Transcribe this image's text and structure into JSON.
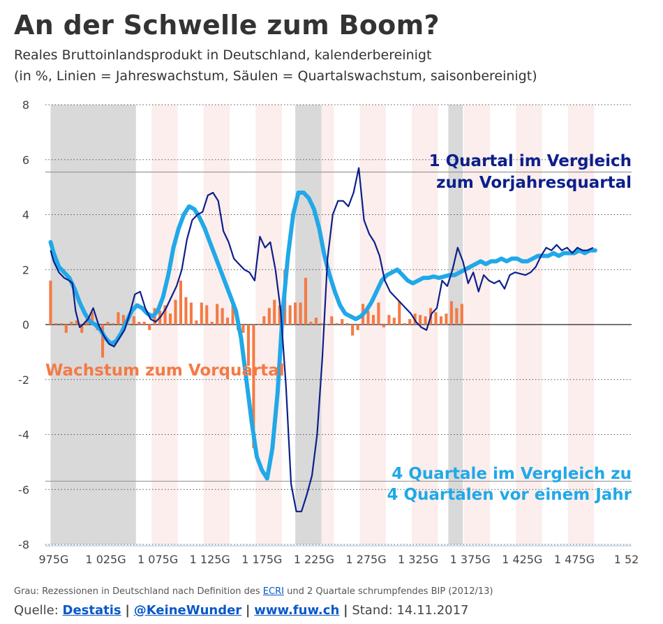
{
  "header": {
    "title": "An der Schwelle zum Boom?",
    "subtitle_line1": "Reales Bruttoinlandsprodukt in Deutschland, kalenderbereinigt",
    "subtitle_line2": "(in %, Linien = Jahreswachstum, Säulen = Quartalswachstum, saisonbereinigt)"
  },
  "footer": {
    "note_prefix": "Grau: Rezessionen in Deutschland nach Definition des",
    "note_link": "ECRI",
    "note_suffix": "und 2 Quartale schrumpfendes BIP (2012/13)",
    "source_label": "Quelle:",
    "source_links": [
      "Destatis",
      "@KeineWunder",
      "www.fuw.ch"
    ],
    "stand": "Stand: 14.11.2017"
  },
  "colors": {
    "bars": "#f47a45",
    "line_quarter_yoy": "#0d1f8a",
    "line_four_quarter": "#21a8e8",
    "recession": "#d9d9d9",
    "stripe": "#fbeeec",
    "text": "#333333"
  },
  "chart_data": {
    "type": "bar",
    "ylim": [
      -8,
      8
    ],
    "yticks": [
      -8,
      -6,
      -4,
      -2,
      0,
      2,
      4,
      6,
      8
    ],
    "xtick_labels": [
      "975G",
      "1 025G",
      "1 075G",
      "1 125G",
      "1 175G",
      "1 225G",
      "1 275G",
      "1 325G",
      "1 375G",
      "1 425G",
      "1 475G",
      "1 52"
    ],
    "xtick_positions": [
      975,
      1025,
      1075,
      1125,
      1175,
      1225,
      1275,
      1325,
      1375,
      1425,
      1475,
      1525
    ],
    "xlim": [
      967,
      1530
    ],
    "grid": "horizontal-dotted",
    "annotations": {
      "bars": "Wachstum zum Vorquartal",
      "quarter_line_1": "1 Quartal im Vergleich",
      "quarter_line_2": "zum Vorjahresquartal",
      "four_quarter_line_1": "4 Quartale im Vergleich zu",
      "four_quarter_line_2": "4 Quartalen vor einem Jahr"
    },
    "recessions": [
      [
        972,
        1054
      ],
      [
        1207,
        1232
      ],
      [
        1354,
        1368
      ]
    ],
    "stripes": [
      [
        1069,
        1094
      ],
      [
        1119,
        1144
      ],
      [
        1169,
        1194
      ],
      [
        1219,
        1244
      ],
      [
        1269,
        1294
      ],
      [
        1319,
        1344
      ],
      [
        1369,
        1394
      ],
      [
        1419,
        1444
      ],
      [
        1469,
        1494
      ]
    ],
    "reference_lines": [
      5.55,
      -5.7
    ],
    "bar_x_start": 972,
    "bar_x_step": 5,
    "bars": [
      1.6,
      0.05,
      0.05,
      -0.3,
      0.1,
      0.15,
      -0.3,
      0.2,
      0.45,
      -0.2,
      -1.2,
      0.1,
      0.05,
      0.45,
      0.35,
      0.0,
      0.3,
      0.1,
      0.1,
      -0.2,
      0.6,
      0.5,
      0.7,
      0.4,
      0.9,
      1.6,
      1.0,
      0.8,
      0.15,
      0.8,
      0.7,
      0.1,
      0.75,
      0.6,
      0.25,
      0.85,
      -0.2,
      -0.3,
      -1.5,
      -4.5,
      0.0,
      0.3,
      0.6,
      0.9,
      0.7,
      2.0,
      0.7,
      0.8,
      0.8,
      1.7,
      0.1,
      0.25,
      0.05,
      0.0,
      0.3,
      0.05,
      0.2,
      0.05,
      -0.4,
      -0.2,
      0.75,
      0.5,
      0.35,
      0.8,
      -0.1,
      0.35,
      0.25,
      0.85,
      0.05,
      0.2,
      0.4,
      0.35,
      0.3,
      0.6,
      0.45,
      0.3,
      0.4,
      0.85,
      0.6,
      0.75
    ],
    "series": [
      {
        "name": "1 Quartal im Vergleich zum Vorjahresquartal",
        "type": "line",
        "x": [
          972,
          975,
          980,
          985,
          990,
          993,
          996,
          1000,
          1003,
          1008,
          1013,
          1018,
          1023,
          1028,
          1033,
          1038,
          1043,
          1048,
          1053,
          1058,
          1063,
          1068,
          1073,
          1078,
          1083,
          1088,
          1093,
          1098,
          1103,
          1108,
          1113,
          1118,
          1123,
          1128,
          1133,
          1138,
          1143,
          1148,
          1153,
          1158,
          1163,
          1168,
          1173,
          1178,
          1183,
          1188,
          1193,
          1198,
          1203,
          1208,
          1213,
          1218,
          1223,
          1228,
          1233,
          1238,
          1243,
          1248,
          1253,
          1258,
          1263,
          1268,
          1273,
          1278,
          1283,
          1288,
          1293,
          1298,
          1303,
          1308,
          1313,
          1318,
          1323,
          1328,
          1333,
          1338,
          1343,
          1348,
          1353,
          1358,
          1363,
          1368,
          1373,
          1378,
          1383,
          1388,
          1393,
          1398,
          1403,
          1408,
          1413,
          1418,
          1423,
          1428,
          1433,
          1438,
          1443,
          1448,
          1453,
          1458,
          1463,
          1468,
          1473,
          1478,
          1483,
          1488,
          1493
        ],
        "y": [
          2.7,
          2.3,
          1.9,
          1.7,
          1.6,
          1.5,
          0.5,
          -0.1,
          0.0,
          0.2,
          0.6,
          0.0,
          -0.4,
          -0.7,
          -0.8,
          -0.5,
          -0.2,
          0.4,
          1.1,
          1.2,
          0.6,
          0.2,
          0.1,
          0.3,
          0.6,
          1.0,
          1.4,
          2.0,
          3.1,
          3.8,
          4.0,
          4.1,
          4.7,
          4.8,
          4.5,
          3.4,
          3.0,
          2.4,
          2.2,
          2.0,
          1.9,
          1.6,
          3.2,
          2.8,
          3.0,
          2.0,
          0.5,
          -2.2,
          -5.8,
          -6.8,
          -6.8,
          -6.2,
          -5.5,
          -4.0,
          -1.2,
          2.4,
          4.0,
          4.5,
          4.5,
          4.3,
          4.8,
          5.7,
          3.8,
          3.3,
          3.0,
          2.5,
          1.6,
          1.2,
          1.0,
          0.8,
          0.6,
          0.4,
          0.1,
          -0.1,
          -0.2,
          0.4,
          0.6,
          1.6,
          1.4,
          2.0,
          2.8,
          2.3,
          1.5,
          1.9,
          1.2,
          1.8,
          1.6,
          1.5,
          1.6,
          1.3,
          1.8,
          1.9,
          1.85,
          1.8,
          1.9,
          2.1,
          2.5,
          2.8,
          2.7,
          2.9,
          2.7,
          2.8,
          2.6,
          2.8,
          2.7,
          2.7,
          2.8
        ]
      },
      {
        "name": "4 Quartale im Vergleich zu 4 Quartalen vor einem Jahr",
        "type": "line",
        "x": [
          972,
          975,
          980,
          985,
          990,
          995,
          1000,
          1005,
          1010,
          1015,
          1020,
          1025,
          1030,
          1035,
          1040,
          1045,
          1050,
          1055,
          1060,
          1065,
          1070,
          1075,
          1080,
          1085,
          1090,
          1095,
          1100,
          1105,
          1110,
          1115,
          1120,
          1125,
          1130,
          1135,
          1140,
          1145,
          1150,
          1155,
          1160,
          1165,
          1170,
          1175,
          1180,
          1185,
          1190,
          1195,
          1200,
          1205,
          1210,
          1215,
          1220,
          1225,
          1230,
          1235,
          1240,
          1245,
          1250,
          1255,
          1260,
          1265,
          1270,
          1275,
          1280,
          1285,
          1290,
          1295,
          1300,
          1305,
          1310,
          1315,
          1320,
          1325,
          1330,
          1335,
          1340,
          1345,
          1350,
          1355,
          1360,
          1365,
          1370,
          1375,
          1380,
          1385,
          1390,
          1395,
          1400,
          1405,
          1410,
          1415,
          1420,
          1425,
          1430,
          1435,
          1440,
          1445,
          1450,
          1455,
          1460,
          1465,
          1470,
          1475,
          1480,
          1485,
          1490,
          1495
        ],
        "y": [
          3.0,
          2.6,
          2.1,
          1.9,
          1.7,
          1.3,
          0.8,
          0.4,
          0.1,
          0.0,
          -0.2,
          -0.5,
          -0.7,
          -0.6,
          -0.3,
          0.1,
          0.5,
          0.7,
          0.6,
          0.4,
          0.3,
          0.5,
          1.0,
          1.8,
          2.8,
          3.5,
          4.0,
          4.3,
          4.2,
          3.9,
          3.5,
          3.0,
          2.5,
          2.0,
          1.5,
          1.0,
          0.5,
          -0.5,
          -2.0,
          -3.5,
          -4.8,
          -5.3,
          -5.6,
          -4.5,
          -2.5,
          0.5,
          2.5,
          4.0,
          4.8,
          4.8,
          4.6,
          4.2,
          3.5,
          2.5,
          1.8,
          1.2,
          0.7,
          0.4,
          0.3,
          0.2,
          0.3,
          0.5,
          0.8,
          1.2,
          1.6,
          1.8,
          1.9,
          2.0,
          1.8,
          1.6,
          1.5,
          1.6,
          1.7,
          1.7,
          1.75,
          1.7,
          1.75,
          1.8,
          1.8,
          1.9,
          2.0,
          2.1,
          2.2,
          2.3,
          2.2,
          2.3,
          2.3,
          2.4,
          2.3,
          2.4,
          2.4,
          2.3,
          2.3,
          2.4,
          2.5,
          2.5,
          2.5,
          2.6,
          2.5,
          2.6,
          2.6,
          2.6,
          2.7,
          2.6,
          2.7,
          2.7
        ]
      }
    ]
  }
}
